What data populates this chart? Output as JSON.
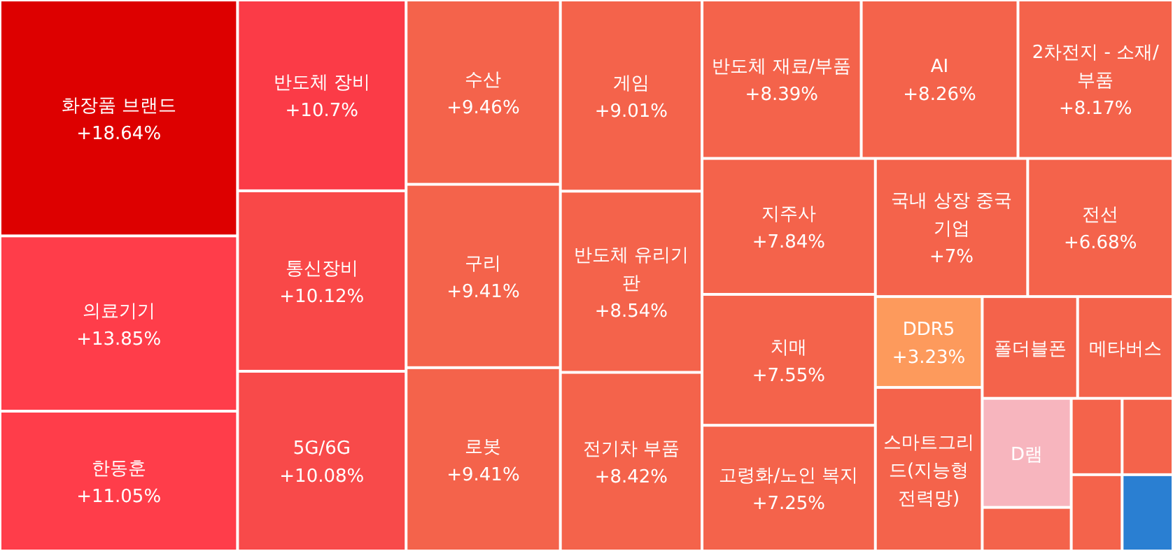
{
  "chart_data": {
    "type": "other",
    "categories": [
      "화장품 브랜드",
      "의료기기",
      "한동훈",
      "반도체 장비",
      "통신장비",
      "5G/6G",
      "수산",
      "구리",
      "로봇",
      "게임",
      "반도체 유리기판",
      "전기차 부품",
      "반도체 재료/부품",
      "AI",
      "2차전지 - 소재/부품",
      "지주사",
      "치매",
      "고령화/노인 복지",
      "국내 상장 중국기업",
      "전선",
      "DDR5",
      "스마트그리드(지능형전력망)",
      "폴더블폰",
      "메타버스",
      "D램",
      null,
      null,
      null,
      null,
      null
    ],
    "values": [
      18.64,
      13.85,
      11.05,
      10.7,
      10.12,
      10.08,
      9.46,
      9.41,
      9.41,
      9.01,
      8.54,
      8.42,
      8.39,
      8.26,
      8.17,
      7.84,
      7.55,
      7.25,
      7,
      6.68,
      3.23,
      null,
      null,
      null,
      null,
      null,
      null,
      null,
      null,
      null
    ],
    "value_labels": [
      "+18.64%",
      "+13.85%",
      "+11.05%",
      "+10.7%",
      "+10.12%",
      "+10.08%",
      "+9.46%",
      "+9.41%",
      "+9.41%",
      "+9.01%",
      "+8.54%",
      "+8.42%",
      "+8.39%",
      "+8.26%",
      "+8.17%",
      "+7.84%",
      "+7.55%",
      "+7.25%",
      "+7%",
      "+6.68%",
      "+3.23%",
      null,
      null,
      null,
      null,
      null,
      null,
      null,
      null,
      null
    ],
    "colors": [
      "#dd0000",
      "#ff3d4a",
      "#ff3d4a",
      "#fb3b47",
      "#f94848",
      "#f84a4a",
      "#f4634b",
      "#f4634b",
      "#f4634b",
      "#f4634b",
      "#f4634b",
      "#f4634b",
      "#f4634b",
      "#f4634b",
      "#f4634b",
      "#f4634b",
      "#f4634b",
      "#f4634b",
      "#f4634b",
      "#f4634b",
      "#fd9a5c",
      "#f4634b",
      "#f4634b",
      "#f4634b",
      "#f7b5be",
      "#f4634b",
      "#f4634b",
      "#f4634b",
      "#f4634b",
      "#2a7fd2"
    ]
  }
}
